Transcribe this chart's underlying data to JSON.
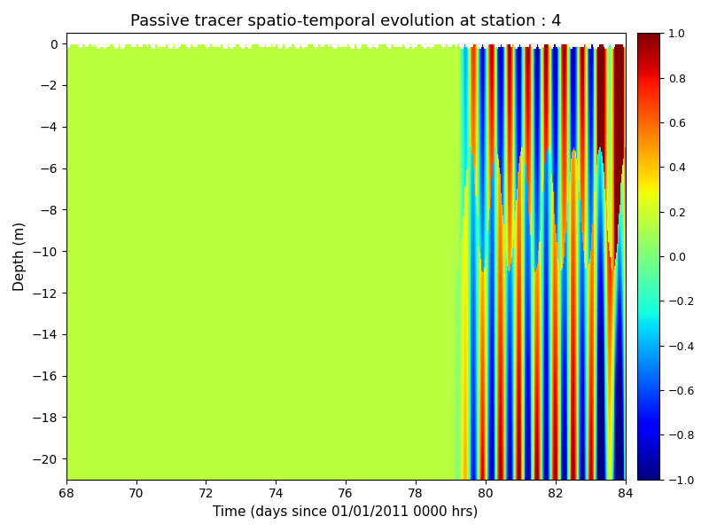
{
  "title": "Passive tracer spatio-temporal evolution at station : 4",
  "xlabel": "Time (days since 01/01/2011 0000 hrs)",
  "ylabel": "Depth (m)",
  "xlim": [
    68,
    84
  ],
  "ylim_min": -21,
  "ylim_max": 0.5,
  "yticks": [
    0,
    -2,
    -4,
    -6,
    -8,
    -10,
    -12,
    -14,
    -16,
    -18,
    -20
  ],
  "xticks": [
    68,
    70,
    72,
    74,
    76,
    78,
    80,
    82,
    84
  ],
  "clim": [
    -1,
    1
  ],
  "time_start": 68,
  "time_end": 84,
  "depth_min": -21,
  "depth_max": 0,
  "transition_day": 79.0,
  "n_time": 800,
  "n_depth": 200,
  "title_fontsize": 13,
  "background_val": 0.15
}
